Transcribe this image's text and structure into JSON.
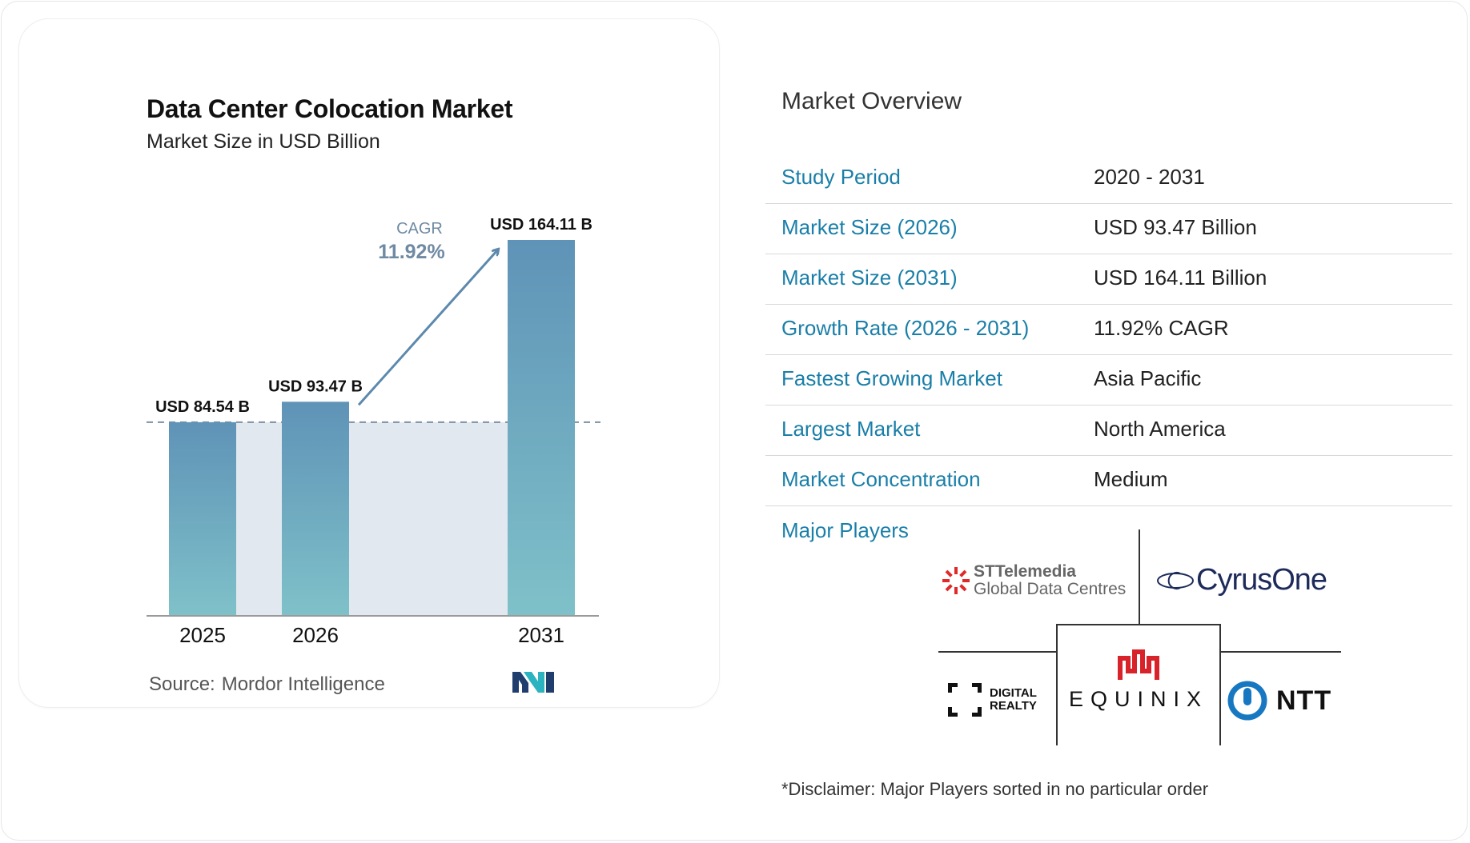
{
  "chart_data": {
    "type": "bar",
    "title": "Data Center Colocation Market",
    "subtitle": "Market Size in USD Billion",
    "categories": [
      "2025",
      "2026",
      "2031"
    ],
    "values": [
      84.54,
      93.47,
      164.11
    ],
    "value_labels": [
      "USD 84.54 B",
      "USD 93.47 B",
      "USD 164.11 B"
    ],
    "cagr_label": "CAGR",
    "cagr_value": "11.92%",
    "ylim": [
      0,
      164.11
    ],
    "grid": false,
    "legend": "none",
    "colors": {
      "bar_top": "#5f93b7",
      "bar_bottom": "#7fc1c9",
      "band": "#e1e8f0",
      "arrow": "#5c89ad",
      "dashed": "#7d90a3",
      "cagr_text": "#6f8aa3"
    }
  },
  "source": {
    "label": "Source:",
    "value": "Mordor Intelligence"
  },
  "overview": {
    "title": "Market Overview",
    "rows": [
      {
        "label": "Study Period",
        "value": "2020 - 2031"
      },
      {
        "label": "Market Size (2026)",
        "value": "USD 93.47 Billion"
      },
      {
        "label": "Market Size (2031)",
        "value": "USD 164.11 Billion"
      },
      {
        "label": "Growth Rate (2026 - 2031)",
        "value": "11.92% CAGR"
      },
      {
        "label": "Fastest Growing Market",
        "value": "Asia Pacific"
      },
      {
        "label": "Largest Market",
        "value": "North America"
      },
      {
        "label": "Market Concentration",
        "value": "Medium"
      }
    ]
  },
  "major_players": {
    "title": "Major Players",
    "logos": {
      "st": {
        "name": "STTelemedia",
        "sub": "Global Data Centres"
      },
      "cyrus": {
        "name": "CyrusOne"
      },
      "digital": {
        "line1": "DIGITAL",
        "line2": "REALTY"
      },
      "equinix": {
        "name": "EQUINIX"
      },
      "ntt": {
        "name": "NTT"
      }
    }
  },
  "disclaimer": "*Disclaimer: Major Players sorted in no particular order"
}
